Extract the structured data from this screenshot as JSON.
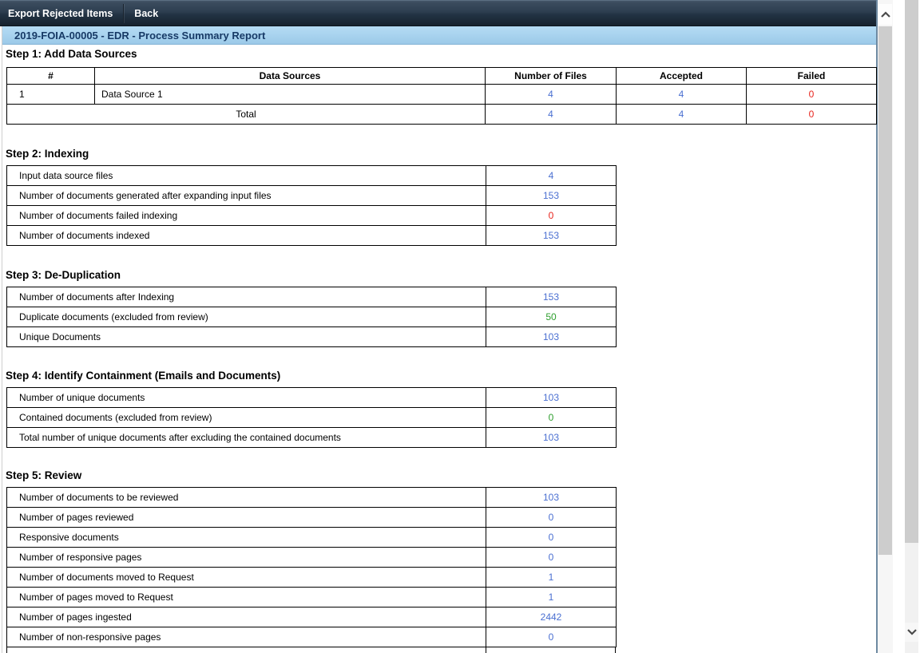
{
  "toolbar": {
    "items": [
      {
        "label": "Export Rejected Items"
      },
      {
        "label": "Back"
      }
    ]
  },
  "title_bar": {
    "title": "2019-FOIA-00005 - EDR - Process Summary Report"
  },
  "colors": {
    "blue": "#4a6fd1",
    "green": "#2e9e2e",
    "red": "#e8251d"
  },
  "step1": {
    "heading": "Step 1: Add Data Sources",
    "columns": [
      "#",
      "Data Sources",
      "Number of Files",
      "Accepted",
      "Failed"
    ],
    "row": {
      "num": "1",
      "source": "Data Source 1",
      "files": "4",
      "accepted": "4",
      "failed": "0"
    },
    "row_colors": {
      "files": "blue",
      "accepted": "blue",
      "failed": "red"
    },
    "total_label": "Total",
    "total": {
      "files": "4",
      "accepted": "4",
      "failed": "0"
    }
  },
  "sections": [
    {
      "heading": "Step 2: Indexing",
      "rows": [
        {
          "label": "Input data source files",
          "value": "4",
          "color": "blue"
        },
        {
          "label": "Number of documents generated after expanding input files",
          "value": "153",
          "color": "blue"
        },
        {
          "label": "Number of documents failed indexing",
          "value": "0",
          "color": "red"
        },
        {
          "label": "Number of documents indexed",
          "value": "153",
          "color": "blue"
        }
      ]
    },
    {
      "heading": "Step 3: De-Duplication",
      "rows": [
        {
          "label": "Number of documents after Indexing",
          "value": "153",
          "color": "blue"
        },
        {
          "label": "Duplicate documents (excluded from review)",
          "value": "50",
          "color": "green"
        },
        {
          "label": "Unique Documents",
          "value": "103",
          "color": "blue"
        }
      ]
    },
    {
      "heading": "Step 4: Identify Containment (Emails and Documents)",
      "rows": [
        {
          "label": "Number of unique documents",
          "value": "103",
          "color": "blue"
        },
        {
          "label": "Contained documents (excluded from review)",
          "value": "0",
          "color": "green"
        },
        {
          "label": "Total number of unique documents after excluding the contained documents",
          "value": "103",
          "color": "blue"
        }
      ]
    },
    {
      "heading": "Step 5: Review",
      "rows": [
        {
          "label": "Number of documents to be reviewed",
          "value": "103",
          "color": "blue"
        },
        {
          "label": "Number of pages reviewed",
          "value": "0",
          "color": "blue"
        },
        {
          "label": "Responsive documents",
          "value": "0",
          "color": "blue"
        },
        {
          "label": "Number of responsive pages",
          "value": "0",
          "color": "blue"
        },
        {
          "label": "Number of documents moved to Request",
          "value": "1",
          "color": "blue"
        },
        {
          "label": "Number of pages moved to Request",
          "value": "1",
          "color": "blue"
        },
        {
          "label": "Number of pages ingested",
          "value": "2442",
          "color": "blue"
        },
        {
          "label": "Number of non-responsive pages",
          "value": "0",
          "color": "blue"
        }
      ]
    }
  ]
}
